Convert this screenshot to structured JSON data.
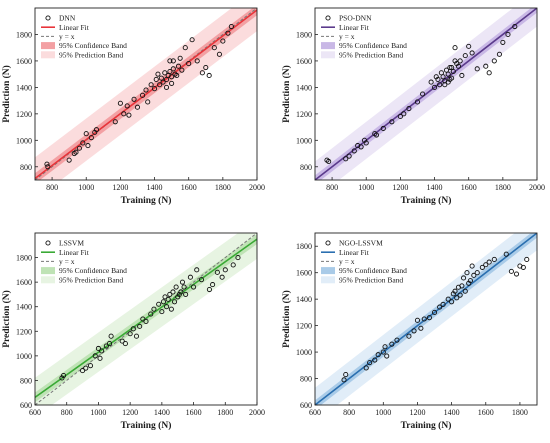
{
  "chart_data": [
    {
      "type": "scatter",
      "xlabel": "Training (N)",
      "ylabel": "Prediction (N)",
      "xlim": [
        700,
        2000
      ],
      "ylim": [
        700,
        2000
      ],
      "xticks": [
        800,
        1000,
        1200,
        1400,
        1600,
        1800,
        2000
      ],
      "yticks": [
        800,
        1000,
        1200,
        1400,
        1600,
        1800
      ],
      "legend": [
        "DNN",
        "Linear Fit",
        "y = x",
        "95% Confidence Band",
        "95% Prediction Band"
      ],
      "legend_position": "top-left",
      "colors": {
        "fit": "#e8343a",
        "conf": "#f3a0a3",
        "pred": "#fbdcdd"
      },
      "fit": {
        "slope": 0.98,
        "intercept": 25
      },
      "conf_halfwidth": 40,
      "pred_halfwidth": 160,
      "points": [
        [
          770,
          820
        ],
        [
          775,
          800
        ],
        [
          900,
          850
        ],
        [
          930,
          900
        ],
        [
          940,
          910
        ],
        [
          960,
          940
        ],
        [
          980,
          980
        ],
        [
          1000,
          1050
        ],
        [
          1010,
          960
        ],
        [
          1030,
          1020
        ],
        [
          1050,
          1060
        ],
        [
          1060,
          1080
        ],
        [
          1170,
          1140
        ],
        [
          1200,
          1280
        ],
        [
          1220,
          1200
        ],
        [
          1240,
          1260
        ],
        [
          1250,
          1190
        ],
        [
          1280,
          1310
        ],
        [
          1300,
          1250
        ],
        [
          1330,
          1340
        ],
        [
          1350,
          1380
        ],
        [
          1360,
          1290
        ],
        [
          1380,
          1420
        ],
        [
          1400,
          1390
        ],
        [
          1410,
          1460
        ],
        [
          1420,
          1500
        ],
        [
          1430,
          1420
        ],
        [
          1440,
          1470
        ],
        [
          1450,
          1440
        ],
        [
          1460,
          1510
        ],
        [
          1470,
          1460
        ],
        [
          1480,
          1490
        ],
        [
          1490,
          1520
        ],
        [
          1500,
          1480
        ],
        [
          1510,
          1540
        ],
        [
          1520,
          1500
        ],
        [
          1530,
          1490
        ],
        [
          1540,
          1560
        ],
        [
          1550,
          1620
        ],
        [
          1560,
          1530
        ],
        [
          1580,
          1700
        ],
        [
          1600,
          1580
        ],
        [
          1620,
          1760
        ],
        [
          1650,
          1600
        ],
        [
          1680,
          1510
        ],
        [
          1700,
          1550
        ],
        [
          1720,
          1490
        ],
        [
          1750,
          1700
        ],
        [
          1780,
          1650
        ],
        [
          1800,
          1750
        ],
        [
          1830,
          1810
        ],
        [
          1850,
          1860
        ],
        [
          1500,
          1430
        ],
        [
          1470,
          1400
        ],
        [
          1490,
          1600
        ],
        [
          1510,
          1600
        ]
      ]
    },
    {
      "type": "scatter",
      "xlabel": "Training (N)",
      "ylabel": "Prediction (N)",
      "xlim": [
        700,
        2000
      ],
      "ylim": [
        700,
        2000
      ],
      "xticks": [
        800,
        1000,
        1200,
        1400,
        1600,
        1800,
        2000
      ],
      "yticks": [
        800,
        1000,
        1200,
        1400,
        1600,
        1800
      ],
      "legend": [
        "PSO-DNN",
        "Linear Fit",
        "y = x",
        "95% Confidence Band",
        "95% Prediction Band"
      ],
      "legend_position": "top-left",
      "colors": {
        "fit": "#5b3a8c",
        "conf": "#c9b8e6",
        "pred": "#ece6f6"
      },
      "fit": {
        "slope": 1.0,
        "intercept": 0
      },
      "conf_halfwidth": 35,
      "pred_halfwidth": 140,
      "points": [
        [
          770,
          850
        ],
        [
          780,
          840
        ],
        [
          880,
          860
        ],
        [
          900,
          880
        ],
        [
          930,
          920
        ],
        [
          950,
          960
        ],
        [
          970,
          950
        ],
        [
          990,
          1000
        ],
        [
          1000,
          980
        ],
        [
          1050,
          1050
        ],
        [
          1060,
          1040
        ],
        [
          1100,
          1090
        ],
        [
          1150,
          1140
        ],
        [
          1200,
          1180
        ],
        [
          1220,
          1200
        ],
        [
          1250,
          1240
        ],
        [
          1300,
          1290
        ],
        [
          1330,
          1350
        ],
        [
          1380,
          1440
        ],
        [
          1400,
          1400
        ],
        [
          1410,
          1480
        ],
        [
          1420,
          1460
        ],
        [
          1430,
          1420
        ],
        [
          1440,
          1510
        ],
        [
          1450,
          1480
        ],
        [
          1460,
          1450
        ],
        [
          1470,
          1530
        ],
        [
          1480,
          1500
        ],
        [
          1490,
          1550
        ],
        [
          1500,
          1470
        ],
        [
          1510,
          1520
        ],
        [
          1520,
          1700
        ],
        [
          1530,
          1580
        ],
        [
          1540,
          1560
        ],
        [
          1550,
          1600
        ],
        [
          1560,
          1490
        ],
        [
          1580,
          1640
        ],
        [
          1600,
          1710
        ],
        [
          1620,
          1660
        ],
        [
          1650,
          1540
        ],
        [
          1700,
          1560
        ],
        [
          1720,
          1510
        ],
        [
          1750,
          1600
        ],
        [
          1780,
          1650
        ],
        [
          1800,
          1740
        ],
        [
          1830,
          1800
        ],
        [
          1870,
          1860
        ],
        [
          1460,
          1420
        ],
        [
          1480,
          1440
        ],
        [
          1500,
          1550
        ],
        [
          1520,
          1600
        ],
        [
          1490,
          1460
        ]
      ]
    },
    {
      "type": "scatter",
      "xlabel": "Training (N)",
      "ylabel": "Prediction (N)",
      "xlim": [
        600,
        2000
      ],
      "ylim": [
        600,
        2000
      ],
      "xticks": [
        600,
        800,
        1000,
        1200,
        1400,
        1600,
        1800,
        2000
      ],
      "yticks": [
        600,
        800,
        1000,
        1200,
        1400,
        1600,
        1800
      ],
      "legend": [
        "LSSVM",
        "Linear Fit",
        "y = x",
        "95% Confidence Band",
        "95% Prediction Band"
      ],
      "legend_position": "top-left",
      "colors": {
        "fit": "#3aa935",
        "conf": "#bfe3b5",
        "pred": "#e7f4e2"
      },
      "fit": {
        "slope": 0.92,
        "intercept": 110
      },
      "conf_halfwidth": 40,
      "pred_halfwidth": 160,
      "points": [
        [
          770,
          820
        ],
        [
          780,
          840
        ],
        [
          900,
          880
        ],
        [
          920,
          900
        ],
        [
          950,
          920
        ],
        [
          980,
          1000
        ],
        [
          1000,
          1060
        ],
        [
          1010,
          980
        ],
        [
          1020,
          1040
        ],
        [
          1050,
          1080
        ],
        [
          1070,
          1100
        ],
        [
          1080,
          1160
        ],
        [
          1150,
          1120
        ],
        [
          1170,
          1100
        ],
        [
          1200,
          1180
        ],
        [
          1220,
          1220
        ],
        [
          1240,
          1160
        ],
        [
          1260,
          1240
        ],
        [
          1280,
          1300
        ],
        [
          1300,
          1280
        ],
        [
          1330,
          1340
        ],
        [
          1350,
          1380
        ],
        [
          1380,
          1420
        ],
        [
          1400,
          1360
        ],
        [
          1410,
          1440
        ],
        [
          1420,
          1480
        ],
        [
          1430,
          1400
        ],
        [
          1440,
          1460
        ],
        [
          1450,
          1500
        ],
        [
          1460,
          1380
        ],
        [
          1470,
          1520
        ],
        [
          1480,
          1440
        ],
        [
          1490,
          1560
        ],
        [
          1500,
          1480
        ],
        [
          1510,
          1500
        ],
        [
          1520,
          1520
        ],
        [
          1530,
          1600
        ],
        [
          1540,
          1560
        ],
        [
          1550,
          1500
        ],
        [
          1580,
          1640
        ],
        [
          1600,
          1560
        ],
        [
          1620,
          1700
        ],
        [
          1650,
          1620
        ],
        [
          1700,
          1540
        ],
        [
          1720,
          1580
        ],
        [
          1750,
          1680
        ],
        [
          1780,
          1640
        ],
        [
          1800,
          1700
        ],
        [
          1850,
          1740
        ],
        [
          1880,
          1800
        ]
      ]
    },
    {
      "type": "scatter",
      "xlabel": "Training (N)",
      "ylabel": "Prediction (N)",
      "xlim": [
        600,
        1900
      ],
      "ylim": [
        600,
        1900
      ],
      "xticks": [
        600,
        800,
        1000,
        1200,
        1400,
        1600,
        1800
      ],
      "yticks": [
        600,
        800,
        1000,
        1200,
        1400,
        1600,
        1800
      ],
      "legend": [
        "NGO-LSSVM",
        "Linear Fit",
        "y = x",
        "95% Confidence Band",
        "95% Prediction Band"
      ],
      "legend_position": "top-left",
      "colors": {
        "fit": "#2a6fb0",
        "conf": "#a9cbe8",
        "pred": "#e1edf8"
      },
      "fit": {
        "slope": 1.0,
        "intercept": 0
      },
      "conf_halfwidth": 35,
      "pred_halfwidth": 130,
      "points": [
        [
          770,
          790
        ],
        [
          780,
          830
        ],
        [
          900,
          880
        ],
        [
          920,
          920
        ],
        [
          950,
          940
        ],
        [
          970,
          980
        ],
        [
          1000,
          1000
        ],
        [
          1010,
          1040
        ],
        [
          1020,
          970
        ],
        [
          1050,
          1060
        ],
        [
          1080,
          1090
        ],
        [
          1150,
          1120
        ],
        [
          1180,
          1160
        ],
        [
          1200,
          1240
        ],
        [
          1220,
          1180
        ],
        [
          1240,
          1250
        ],
        [
          1270,
          1260
        ],
        [
          1300,
          1300
        ],
        [
          1330,
          1340
        ],
        [
          1350,
          1360
        ],
        [
          1380,
          1400
        ],
        [
          1400,
          1380
        ],
        [
          1410,
          1440
        ],
        [
          1420,
          1460
        ],
        [
          1430,
          1410
        ],
        [
          1440,
          1490
        ],
        [
          1450,
          1430
        ],
        [
          1460,
          1500
        ],
        [
          1470,
          1560
        ],
        [
          1480,
          1460
        ],
        [
          1490,
          1600
        ],
        [
          1500,
          1520
        ],
        [
          1510,
          1540
        ],
        [
          1520,
          1650
        ],
        [
          1530,
          1580
        ],
        [
          1550,
          1600
        ],
        [
          1580,
          1640
        ],
        [
          1600,
          1660
        ],
        [
          1620,
          1680
        ],
        [
          1650,
          1700
        ],
        [
          1720,
          1740
        ],
        [
          1750,
          1610
        ],
        [
          1780,
          1590
        ],
        [
          1800,
          1650
        ],
        [
          1820,
          1640
        ],
        [
          1840,
          1700
        ]
      ]
    }
  ]
}
